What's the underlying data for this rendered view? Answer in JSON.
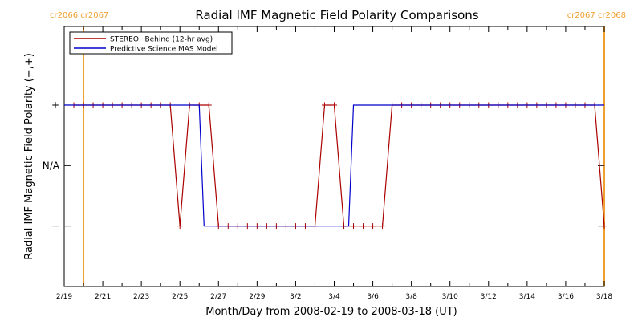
{
  "chart_data": {
    "type": "line",
    "title": "Radial IMF Magnetic Field Polarity Comparisons",
    "xlabel": "Month/Day from 2008-02-19 to 2008-03-18 (UT)",
    "ylabel": "Radial IMF Magnetic Field Polarity (−,+)",
    "xlim": [
      "2008-02-19",
      "2008-03-18"
    ],
    "x_ticks": [
      "2/19",
      "2/21",
      "2/23",
      "2/25",
      "2/27",
      "2/29",
      "3/2",
      "3/4",
      "3/6",
      "3/8",
      "3/10",
      "3/12",
      "3/14",
      "3/16",
      "3/18"
    ],
    "y_categories": [
      "−",
      "N/A",
      "+"
    ],
    "y_ticks": [
      {
        "label": "−",
        "value": -1
      },
      {
        "label": "N/A",
        "value": 0
      },
      {
        "label": "+",
        "value": 1
      }
    ],
    "ylim": [
      -2,
      2.3
    ],
    "legend": {
      "placement": "top-left"
    },
    "series": [
      {
        "name": "STEREO−Behind (12-hr avg)",
        "color": "#aa0000",
        "marker": "plus",
        "x": [
          "2008-02-19 12:00",
          "2008-02-20 00:00",
          "2008-02-20 12:00",
          "2008-02-21 00:00",
          "2008-02-21 12:00",
          "2008-02-22 00:00",
          "2008-02-22 12:00",
          "2008-02-23 00:00",
          "2008-02-23 12:00",
          "2008-02-24 00:00",
          "2008-02-24 12:00",
          "2008-02-25 00:00",
          "2008-02-25 12:00",
          "2008-02-26 00:00",
          "2008-02-26 12:00",
          "2008-02-27 00:00",
          "2008-02-27 12:00",
          "2008-02-28 00:00",
          "2008-02-28 12:00",
          "2008-02-29 00:00",
          "2008-02-29 12:00",
          "2008-03-01 00:00",
          "2008-03-01 12:00",
          "2008-03-02 00:00",
          "2008-03-02 12:00",
          "2008-03-03 00:00",
          "2008-03-03 12:00",
          "2008-03-04 00:00",
          "2008-03-04 12:00",
          "2008-03-05 00:00",
          "2008-03-05 12:00",
          "2008-03-06 00:00",
          "2008-03-06 12:00",
          "2008-03-07 00:00",
          "2008-03-07 12:00",
          "2008-03-08 00:00",
          "2008-03-08 12:00",
          "2008-03-09 00:00",
          "2008-03-09 12:00",
          "2008-03-10 00:00",
          "2008-03-10 12:00",
          "2008-03-11 00:00",
          "2008-03-11 12:00",
          "2008-03-12 00:00",
          "2008-03-12 12:00",
          "2008-03-13 00:00",
          "2008-03-13 12:00",
          "2008-03-14 00:00",
          "2008-03-14 12:00",
          "2008-03-15 00:00",
          "2008-03-15 12:00",
          "2008-03-16 00:00",
          "2008-03-16 12:00",
          "2008-03-17 00:00",
          "2008-03-17 12:00",
          "2008-03-18 00:00"
        ],
        "y": [
          1,
          1,
          1,
          1,
          1,
          1,
          1,
          1,
          1,
          1,
          1,
          -1,
          1,
          1,
          1,
          -1,
          -1,
          -1,
          -1,
          -1,
          -1,
          -1,
          -1,
          -1,
          -1,
          -1,
          1,
          1,
          -1,
          -1,
          -1,
          -1,
          -1,
          1,
          1,
          1,
          1,
          1,
          1,
          1,
          1,
          1,
          1,
          1,
          1,
          1,
          1,
          1,
          1,
          1,
          1,
          1,
          1,
          1,
          1,
          -1
        ]
      },
      {
        "name": "Predictive Science MAS Model",
        "color": "#0000cc",
        "x": [
          "2008-02-19 00:00",
          "2008-02-26 00:00",
          "2008-02-26 06:00",
          "2008-03-04 18:00",
          "2008-03-05 00:00",
          "2008-03-18 00:00"
        ],
        "y": [
          1,
          1,
          -1,
          -1,
          1,
          1
        ]
      }
    ],
    "vertical_markers": [
      {
        "date": "2008-02-20 00:00",
        "label": "cr2066 cr2067",
        "color": "#f0a030",
        "label_side": "left"
      },
      {
        "date": "2008-03-18 00:00",
        "label": "cr2067 cr2068",
        "color": "#f0a030",
        "label_side": "right"
      }
    ]
  }
}
